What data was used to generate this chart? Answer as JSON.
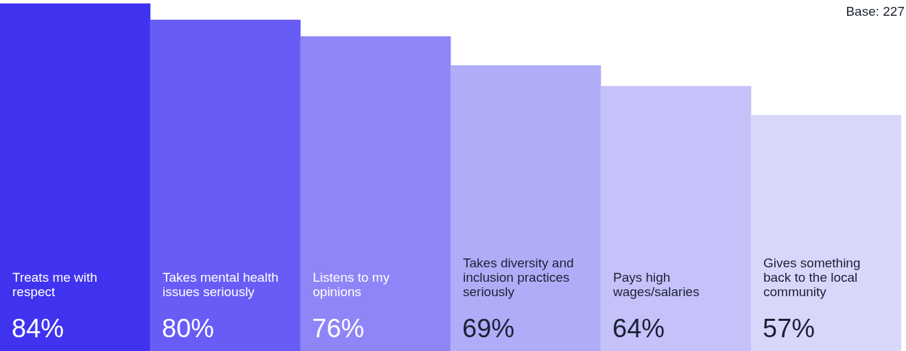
{
  "chart_data": {
    "type": "bar",
    "categories": [
      "Treats me with respect",
      "Takes mental health issues seriously",
      "Listens to my opinions",
      "Takes diversity and inclusion practices seriously",
      "Pays high wages/salaries",
      "Gives something back to the local community"
    ],
    "values": [
      84,
      80,
      76,
      69,
      64,
      57
    ],
    "colors": [
      "#4033f0",
      "#675cf5",
      "#8f85f7",
      "#b1acf8",
      "#c5c1f9",
      "#d9d6fb"
    ],
    "value_labels": [
      "84%",
      "80%",
      "76%",
      "69%",
      "64%",
      "57%"
    ],
    "tick_labels": false,
    "annotations": [
      "Base: 227"
    ]
  }
}
